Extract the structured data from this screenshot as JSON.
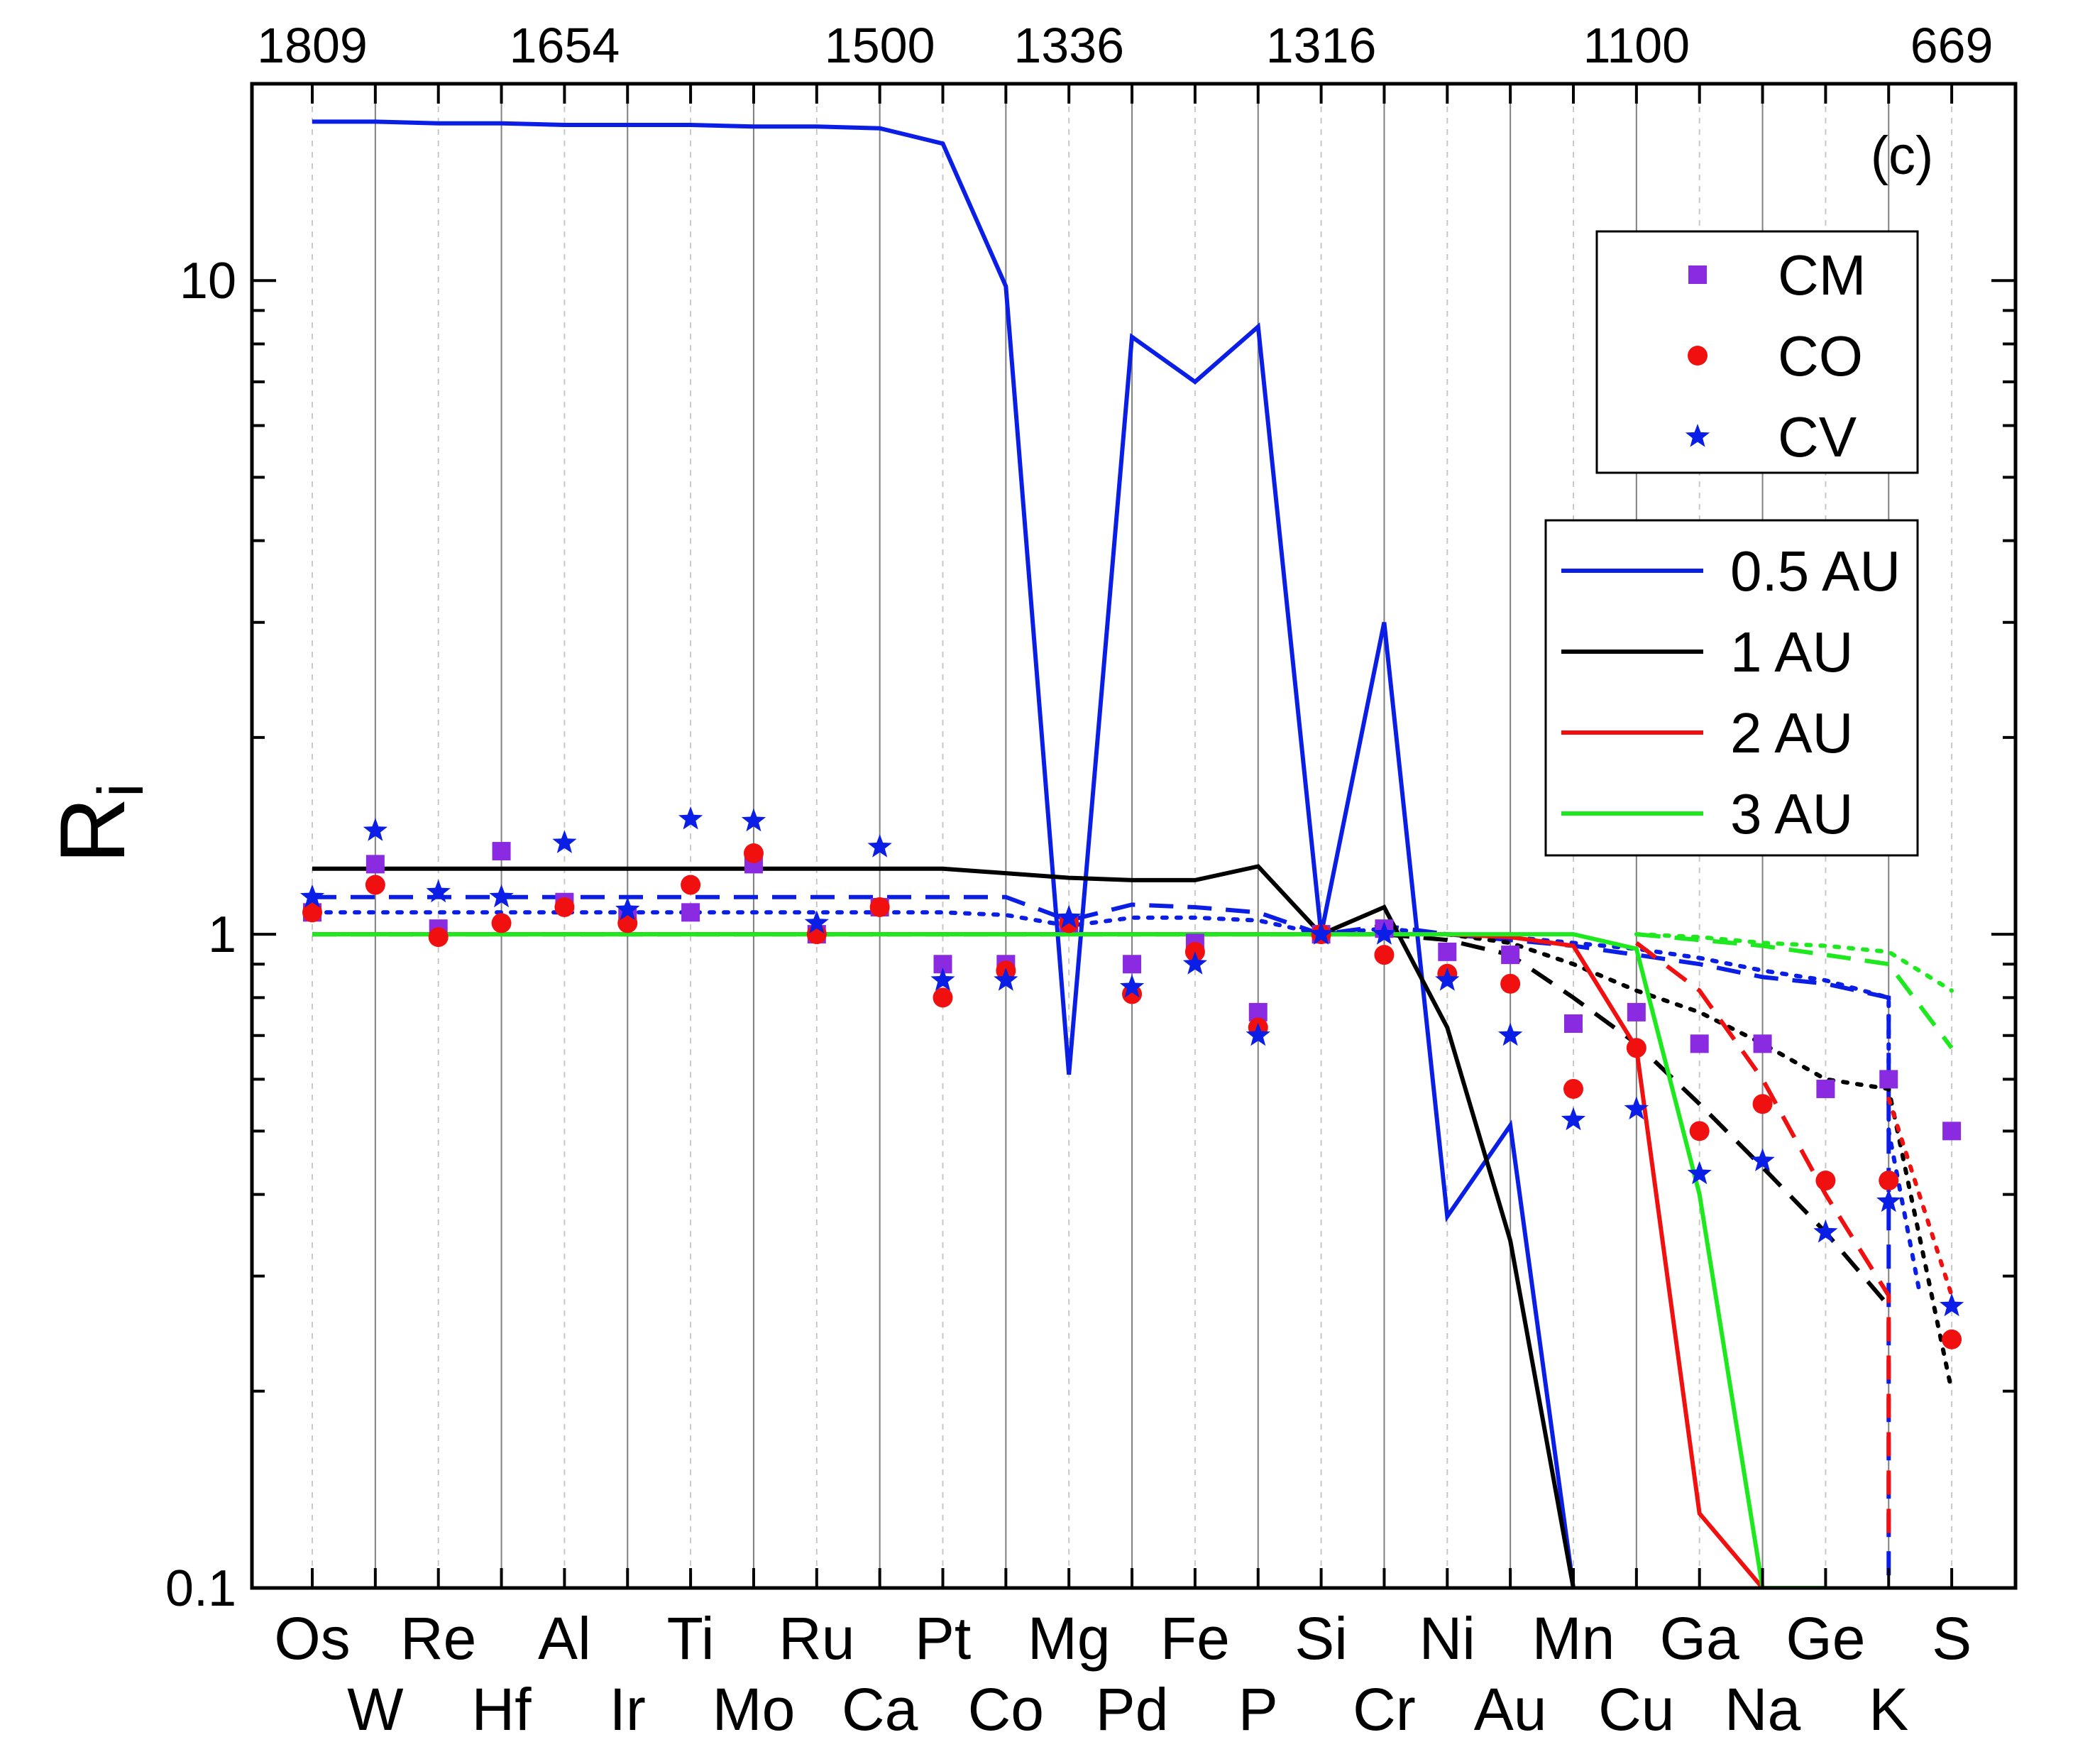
{
  "chart_data": {
    "type": "line",
    "panel_label": "(c)",
    "ylabel": "R",
    "ylabel_subscript": "i",
    "yscale": "log",
    "ylim": [
      0.1,
      20
    ],
    "y_ticks": [
      "0.1",
      "1",
      "10"
    ],
    "categories": [
      "Os",
      "W",
      "Re",
      "Hf",
      "Al",
      "Ir",
      "Ti",
      "Mo",
      "Ru",
      "Ca",
      "Pt",
      "Co",
      "Mg",
      "Pd",
      "Fe",
      "P",
      "Si",
      "Cr",
      "Ni",
      "Au",
      "Mn",
      "Cu",
      "Ga",
      "Na",
      "Ge",
      "K",
      "S"
    ],
    "x_labels_top_row": [
      "Os",
      "Re",
      "Al",
      "Ti",
      "Ru",
      "Pt",
      "Mg",
      "Fe",
      "Si",
      "Ni",
      "Mn",
      "Ga",
      "Ge",
      "S"
    ],
    "x_labels_bottom_row": [
      "W",
      "Hf",
      "Ir",
      "Mo",
      "Ca",
      "Co",
      "Pd",
      "P",
      "Cr",
      "Au",
      "Cu",
      "Na",
      "K"
    ],
    "top_axis": [
      {
        "label": "1809",
        "at": "Os"
      },
      {
        "label": "1654",
        "at": "Al"
      },
      {
        "label": "1500",
        "at": "Ca"
      },
      {
        "label": "1336",
        "at": "Mg"
      },
      {
        "label": "1316",
        "at": "Si"
      },
      {
        "label": "1100",
        "at": "Cu"
      },
      {
        "label": "669",
        "at": "S"
      }
    ],
    "series": [
      {
        "name": "0.5 AU",
        "color": "#0a1ee6",
        "style": "solid",
        "values": [
          17.5,
          17.5,
          17.4,
          17.4,
          17.3,
          17.3,
          17.3,
          17.2,
          17.2,
          17.1,
          16.2,
          9.8,
          0.61,
          8.2,
          7.0,
          8.5,
          1.0,
          3.0,
          0.37,
          0.51,
          0.09,
          null,
          null,
          null,
          null,
          null,
          null
        ]
      },
      {
        "name": "1 AU",
        "color": "#000000",
        "style": "solid",
        "values": [
          1.26,
          1.26,
          1.26,
          1.26,
          1.26,
          1.26,
          1.26,
          1.26,
          1.26,
          1.26,
          1.26,
          1.24,
          1.22,
          1.21,
          1.21,
          1.27,
          1.0,
          1.1,
          0.72,
          0.34,
          0.09,
          null,
          null,
          null,
          null,
          null,
          null
        ]
      },
      {
        "name": "2 AU",
        "color": "#f01010",
        "style": "solid",
        "values": [
          1.0,
          1.0,
          1.0,
          1.0,
          1.0,
          1.0,
          1.0,
          1.0,
          1.0,
          1.0,
          1.0,
          1.0,
          1.0,
          1.0,
          1.0,
          1.0,
          1.0,
          1.0,
          1.0,
          0.99,
          0.96,
          0.67,
          0.13,
          0.08,
          null,
          null,
          null
        ]
      },
      {
        "name": "3 AU",
        "color": "#1ee81e",
        "style": "solid",
        "values": [
          1.0,
          1.0,
          1.0,
          1.0,
          1.0,
          1.0,
          1.0,
          1.0,
          1.0,
          1.0,
          1.0,
          1.0,
          1.0,
          1.0,
          1.0,
          1.0,
          1.0,
          1.0,
          1.0,
          1.0,
          1.0,
          0.95,
          0.4,
          0.1,
          0.09,
          null,
          null
        ]
      }
    ],
    "styled_lines": [
      {
        "color": "#0a1ee6",
        "style": "dash",
        "values": [
          1.14,
          1.14,
          1.14,
          1.14,
          1.14,
          1.14,
          1.14,
          1.14,
          1.14,
          1.14,
          1.14,
          1.14,
          1.05,
          1.11,
          1.1,
          1.08,
          1.0,
          1.03,
          1.0,
          0.98,
          0.96,
          0.93,
          0.9,
          0.86,
          0.84,
          0.8,
          null
        ],
        "tail": [
          [
            25,
            0.62
          ],
          [
            25,
            0.1
          ]
        ]
      },
      {
        "color": "#0a1ee6",
        "style": "dot",
        "values": [
          1.08,
          1.08,
          1.08,
          1.08,
          1.08,
          1.08,
          1.08,
          1.08,
          1.08,
          1.08,
          1.08,
          1.07,
          1.03,
          1.06,
          1.06,
          1.05,
          1.0,
          1.02,
          1.0,
          0.99,
          0.97,
          0.95,
          0.92,
          0.88,
          0.85,
          0.8,
          null
        ],
        "tail": [
          [
            25,
            0.5
          ],
          [
            25.5,
            0.28
          ]
        ]
      },
      {
        "color": "#000000",
        "style": "dash",
        "values": [
          1.0,
          1.0,
          1.0,
          1.0,
          1.0,
          1.0,
          1.0,
          1.0,
          1.0,
          1.0,
          1.0,
          1.0,
          1.0,
          1.0,
          1.0,
          1.0,
          1.0,
          1.0,
          0.98,
          0.93,
          0.8,
          0.68,
          0.55,
          0.44,
          0.35,
          0.27,
          null
        ]
      },
      {
        "color": "#000000",
        "style": "dot",
        "values": [
          null,
          null,
          null,
          null,
          null,
          null,
          null,
          null,
          null,
          null,
          null,
          null,
          null,
          null,
          null,
          null,
          null,
          null,
          1.0,
          0.97,
          0.9,
          0.82,
          0.76,
          0.68,
          0.6,
          0.58,
          0.2
        ]
      },
      {
        "color": "#f01010",
        "style": "dash",
        "values": [
          null,
          null,
          null,
          null,
          null,
          null,
          null,
          null,
          null,
          null,
          null,
          null,
          null,
          null,
          null,
          null,
          null,
          null,
          null,
          null,
          null,
          0.97,
          0.82,
          0.6,
          0.4,
          0.28,
          null
        ],
        "tail": [
          [
            25,
            0.12
          ]
        ]
      },
      {
        "color": "#f01010",
        "style": "dot",
        "values": [
          null,
          null,
          null,
          null,
          null,
          null,
          null,
          null,
          null,
          null,
          null,
          null,
          null,
          null,
          null,
          null,
          null,
          null,
          null,
          null,
          null,
          null,
          null,
          null,
          null,
          0.56,
          0.28
        ]
      },
      {
        "color": "#1ee81e",
        "style": "dash",
        "values": [
          null,
          null,
          null,
          null,
          null,
          null,
          null,
          null,
          null,
          null,
          null,
          null,
          null,
          null,
          null,
          null,
          null,
          null,
          null,
          null,
          null,
          1.0,
          0.98,
          0.96,
          0.93,
          0.9,
          0.67
        ]
      },
      {
        "color": "#1ee81e",
        "style": "dot",
        "values": [
          null,
          null,
          null,
          null,
          null,
          null,
          null,
          null,
          null,
          null,
          null,
          null,
          null,
          null,
          null,
          null,
          null,
          null,
          null,
          null,
          null,
          1.0,
          0.99,
          0.97,
          0.96,
          0.94,
          0.82
        ]
      }
    ],
    "scatter": [
      {
        "name": "CM",
        "color": "#8a2be2",
        "marker": "square",
        "values": [
          1.08,
          1.28,
          1.02,
          1.34,
          1.12,
          1.06,
          1.08,
          1.28,
          1.0,
          1.1,
          0.9,
          0.9,
          1.04,
          0.9,
          0.97,
          0.76,
          1.0,
          1.02,
          0.94,
          0.93,
          0.73,
          0.76,
          0.68,
          0.68,
          0.58,
          0.6,
          0.5
        ]
      },
      {
        "name": "CO",
        "color": "#f01010",
        "marker": "circle",
        "values": [
          1.08,
          1.19,
          0.99,
          1.04,
          1.1,
          1.04,
          1.19,
          1.33,
          1.0,
          1.1,
          0.8,
          0.88,
          1.04,
          0.81,
          0.94,
          0.72,
          1.0,
          0.93,
          0.87,
          0.84,
          0.58,
          0.67,
          0.5,
          0.55,
          0.42,
          0.42,
          0.24
        ]
      },
      {
        "name": "CV",
        "color": "#0a1ee6",
        "marker": "star",
        "values": [
          1.14,
          1.44,
          1.16,
          1.14,
          1.38,
          1.09,
          1.5,
          1.49,
          1.04,
          1.36,
          0.85,
          0.85,
          1.06,
          0.83,
          0.9,
          0.7,
          1.0,
          1.0,
          0.85,
          0.7,
          0.52,
          0.54,
          0.43,
          0.45,
          0.35,
          0.39,
          0.27
        ]
      }
    ],
    "legend_markers": [
      {
        "label": "CM",
        "color": "#8a2be2",
        "marker": "square"
      },
      {
        "label": "CO",
        "color": "#f01010",
        "marker": "circle"
      },
      {
        "label": "CV",
        "color": "#0a1ee6",
        "marker": "star"
      }
    ],
    "legend_lines": [
      {
        "label": "0.5 AU",
        "color": "#0a1ee6"
      },
      {
        "label": "1 AU",
        "color": "#000000"
      },
      {
        "label": "2 AU",
        "color": "#f01010"
      },
      {
        "label": "3 AU",
        "color": "#1ee81e"
      }
    ]
  }
}
